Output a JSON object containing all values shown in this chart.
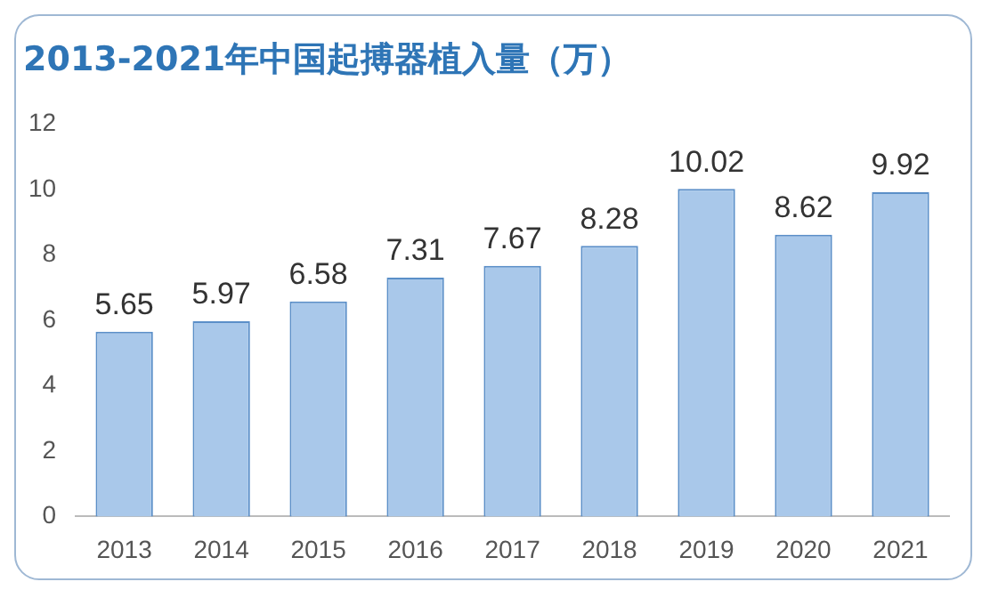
{
  "chart_data": {
    "type": "bar",
    "title": "2013-2021年中国起搏器植入量（万）",
    "categories": [
      "2013",
      "2014",
      "2015",
      "2016",
      "2017",
      "2018",
      "2019",
      "2020",
      "2021"
    ],
    "values": [
      5.65,
      5.97,
      6.58,
      7.31,
      7.67,
      8.28,
      10.02,
      8.62,
      9.92
    ],
    "color": "#a9c8ea",
    "ylim": [
      0,
      12
    ],
    "yticks": [
      0,
      2,
      4,
      6,
      8,
      10,
      12
    ],
    "grid": false,
    "data_labels": true
  }
}
